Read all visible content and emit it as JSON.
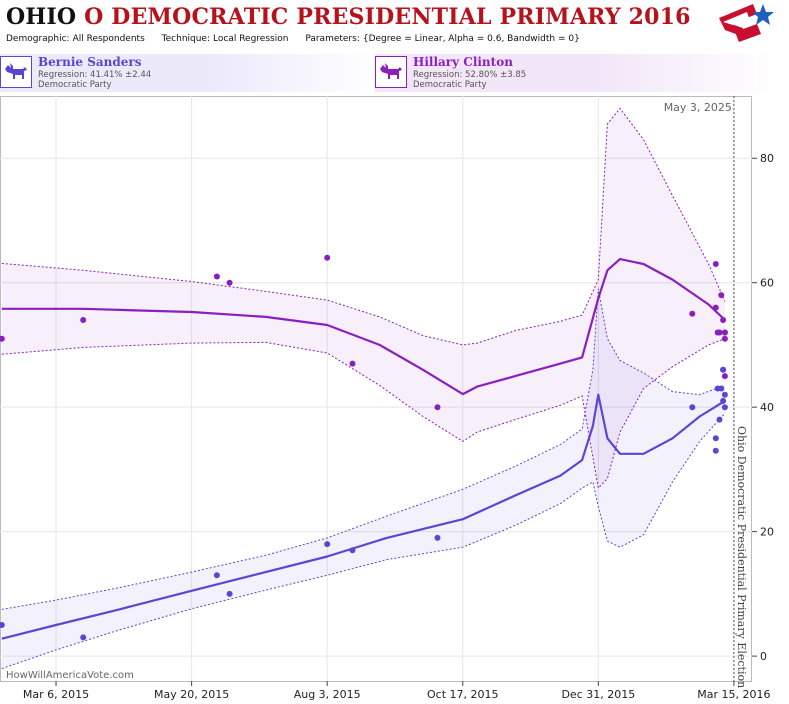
{
  "header": {
    "title_state": "OHIO",
    "title_rest": "O DEMOCRATIC PRESIDENTIAL PRIMARY 2016",
    "demographic_label": "Demographic:",
    "demographic_value": "All Respondents",
    "technique_label": "Technique:",
    "technique_value": "Local Regression",
    "parameters_label": "Parameters:",
    "parameters_value": "{Degree = Linear, Alpha = 0.6, Bandwidth = 0}",
    "logo_icon": "star-flag-logo-icon"
  },
  "candidates": [
    {
      "name": "Bernie Sanders",
      "regression": "Regression: 41.41% ±2.44",
      "party": "Democratic Party",
      "icon": "donkey-icon",
      "color": "#5b45d6",
      "tint": "#ece9fb"
    },
    {
      "name": "Hillary Clinton",
      "regression": "Regression: 52.80% ±3.85",
      "party": "Democratic Party",
      "icon": "donkey-icon",
      "color": "#8a1fbf",
      "tint": "#f2e6f8"
    }
  ],
  "credit": "HowWillAmericaVote.com",
  "chart_data": {
    "type": "scatter",
    "x_axis": {
      "type": "date",
      "ticks": [
        "2015-03-06",
        "2015-05-20",
        "2015-08-03",
        "2015-10-17",
        "2015-12-31",
        "2016-03-15"
      ],
      "tick_labels": [
        "Mar 6, 2015",
        "May 20, 2015",
        "Aug 3, 2015",
        "Oct 17, 2015",
        "Dec 31, 2015",
        "Mar 15, 2016"
      ],
      "range": [
        "2015-02-03",
        "2016-03-25"
      ]
    },
    "y_axis": {
      "ticks": [
        0,
        20,
        40,
        60,
        80
      ],
      "range": [
        -4,
        90
      ],
      "position": "right",
      "grid": true
    },
    "annotations": {
      "date_label": "May 3, 2025",
      "election_label": "Ohio Democratic Presidential Primary Election",
      "election_date": "2016-03-15"
    },
    "series": [
      {
        "name": "Hillary Clinton",
        "color": "#8a1fbf",
        "points": [
          [
            "2015-02-04",
            51
          ],
          [
            "2015-03-21",
            54
          ],
          [
            "2015-06-03",
            61
          ],
          [
            "2015-06-10",
            60
          ],
          [
            "2015-08-03",
            64
          ],
          [
            "2015-08-17",
            47
          ],
          [
            "2015-10-03",
            40
          ],
          [
            "2016-02-21",
            55
          ],
          [
            "2016-03-05",
            63
          ],
          [
            "2016-03-05",
            56
          ],
          [
            "2016-03-06",
            52
          ],
          [
            "2016-03-07",
            52
          ],
          [
            "2016-03-08",
            58
          ],
          [
            "2016-03-09",
            54
          ],
          [
            "2016-03-10",
            52
          ],
          [
            "2016-03-10",
            51
          ],
          [
            "2016-03-10",
            52
          ],
          [
            "2016-03-09",
            46
          ],
          [
            "2016-03-10",
            45
          ]
        ],
        "trend": [
          [
            "2015-02-04",
            55.8,
            48.5,
            63.1
          ],
          [
            "2015-03-21",
            55.8,
            49.6,
            62.0
          ],
          [
            "2015-05-20",
            55.3,
            50.3,
            60.2
          ],
          [
            "2015-06-30",
            54.5,
            50.4,
            58.6
          ],
          [
            "2015-08-03",
            53.2,
            48.7,
            57.2
          ],
          [
            "2015-09-01",
            50.0,
            43.5,
            54.5
          ],
          [
            "2015-09-25",
            46.0,
            38.5,
            51.5
          ],
          [
            "2015-10-17",
            42.1,
            34.5,
            50.0
          ],
          [
            "2015-10-25",
            43.3,
            36.0,
            50.3
          ],
          [
            "2015-11-15",
            45.0,
            38.0,
            52.3
          ],
          [
            "2015-12-10",
            47.0,
            40.3,
            53.8
          ],
          [
            "2015-12-22",
            48.0,
            41.8,
            54.8
          ],
          [
            "2015-12-31",
            57.5,
            27.0,
            60.5
          ],
          [
            "2016-01-05",
            62.0,
            28.5,
            85.5
          ],
          [
            "2016-01-12",
            63.8,
            36.0,
            88.0
          ],
          [
            "2016-01-25",
            63.0,
            43.0,
            83.0
          ],
          [
            "2016-02-10",
            60.5,
            46.5,
            74.0
          ],
          [
            "2016-03-01",
            56.5,
            50.0,
            63.0
          ],
          [
            "2016-03-10",
            54.0,
            51.0,
            57.0
          ]
        ]
      },
      {
        "name": "Bernie Sanders",
        "color": "#5b45d6",
        "points": [
          [
            "2015-02-04",
            5
          ],
          [
            "2015-03-21",
            3
          ],
          [
            "2015-06-03",
            13
          ],
          [
            "2015-06-10",
            10
          ],
          [
            "2015-08-03",
            18
          ],
          [
            "2015-08-17",
            17
          ],
          [
            "2015-10-03",
            19
          ],
          [
            "2016-02-21",
            40
          ],
          [
            "2016-03-05",
            35
          ],
          [
            "2016-03-05",
            33
          ],
          [
            "2016-03-06",
            43
          ],
          [
            "2016-03-07",
            38
          ],
          [
            "2016-03-08",
            43
          ],
          [
            "2016-03-09",
            41
          ],
          [
            "2016-03-10",
            40
          ],
          [
            "2016-03-09",
            46
          ],
          [
            "2016-03-10",
            42
          ]
        ],
        "trend": [
          [
            "2015-02-04",
            2.8,
            -2.0,
            7.5
          ],
          [
            "2015-03-06",
            5.0,
            1.0,
            9.0
          ],
          [
            "2015-04-10",
            7.5,
            4.2,
            11.0
          ],
          [
            "2015-05-20",
            10.5,
            7.6,
            13.5
          ],
          [
            "2015-06-30",
            13.5,
            10.6,
            16.2
          ],
          [
            "2015-08-03",
            16.0,
            13.0,
            19.0
          ],
          [
            "2015-09-05",
            19.0,
            15.5,
            22.5
          ],
          [
            "2015-10-17",
            22.0,
            17.5,
            26.8
          ],
          [
            "2015-11-15",
            25.8,
            21.0,
            30.5
          ],
          [
            "2015-12-10",
            29.0,
            24.5,
            34.0
          ],
          [
            "2015-12-22",
            31.5,
            27.0,
            36.5
          ],
          [
            "2015-12-28",
            37.0,
            28.0,
            46.0
          ],
          [
            "2015-12-31",
            42.0,
            24.0,
            59.0
          ],
          [
            "2016-01-05",
            35.0,
            18.5,
            51.0
          ],
          [
            "2016-01-12",
            32.5,
            17.5,
            47.5
          ],
          [
            "2016-01-25",
            32.5,
            19.5,
            45.5
          ],
          [
            "2016-02-10",
            35.0,
            28.0,
            42.5
          ],
          [
            "2016-02-25",
            38.5,
            34.5,
            42.0
          ],
          [
            "2016-03-10",
            41.0,
            39.0,
            43.5
          ]
        ]
      }
    ]
  }
}
